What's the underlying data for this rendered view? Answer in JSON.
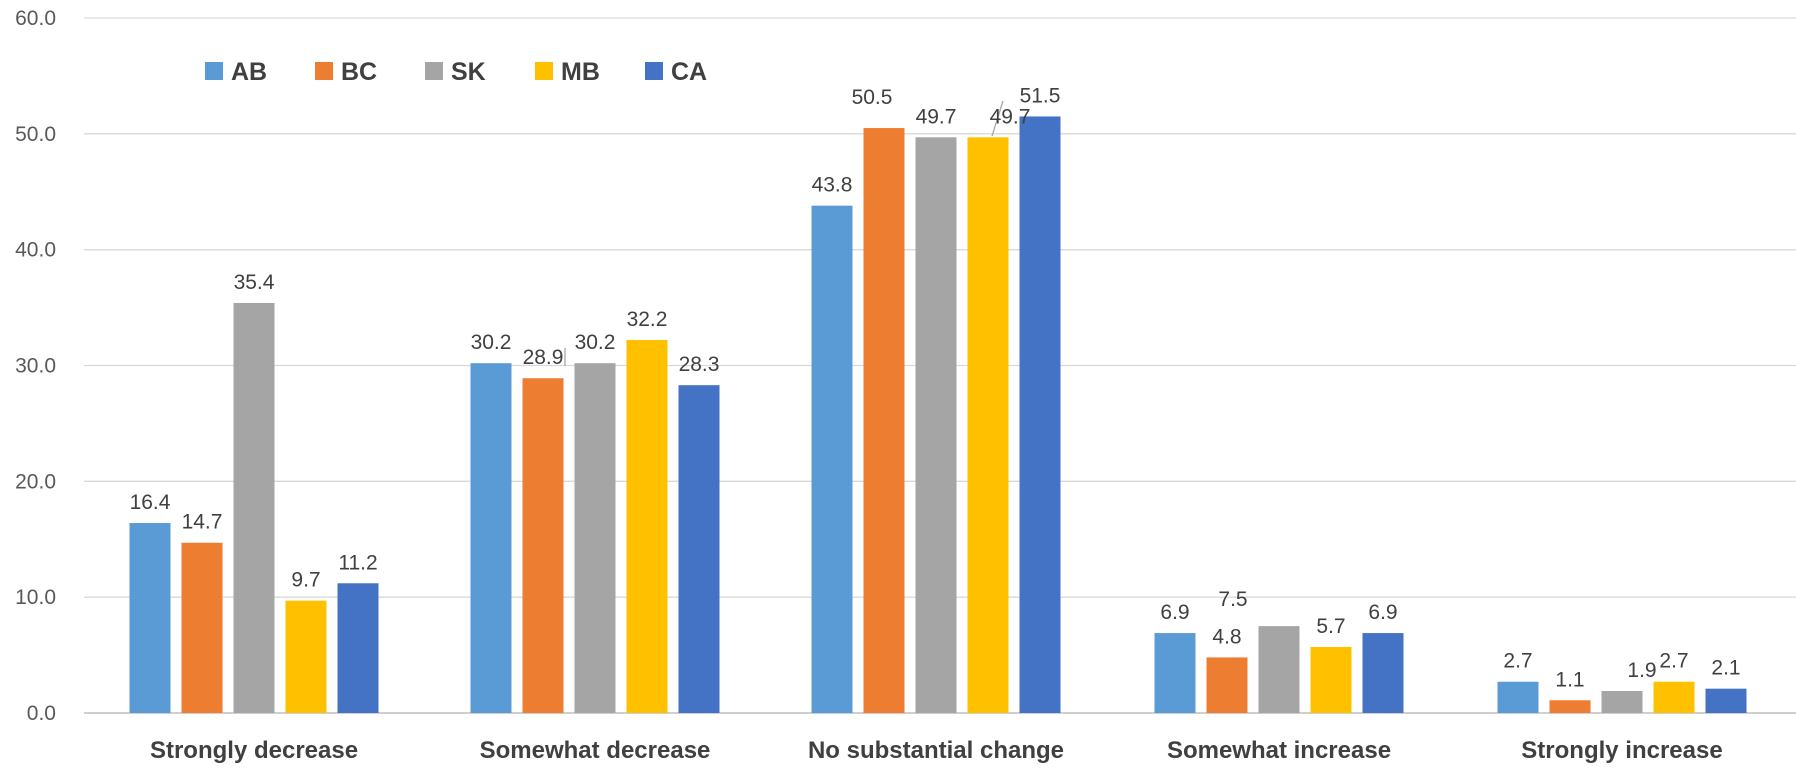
{
  "chart_data": {
    "type": "bar",
    "title": "",
    "xlabel": "",
    "ylabel": "",
    "ylim": [
      0,
      60
    ],
    "yticks": [
      "0.0",
      "10.0",
      "20.0",
      "30.0",
      "40.0",
      "50.0",
      "60.0"
    ],
    "grid": true,
    "legend_position": "top-left",
    "categories": [
      "Strongly decrease",
      "Somewhat decrease",
      "No substantial change",
      "Somewhat increase",
      "Strongly increase"
    ],
    "series": [
      {
        "name": "AB",
        "color": "#5b9bd5",
        "values": [
          16.4,
          30.2,
          43.8,
          6.9,
          2.7
        ],
        "labels": [
          "16.4",
          "30.2",
          "43.8",
          "6.9",
          "2.7"
        ]
      },
      {
        "name": "BC",
        "color": "#ed7d31",
        "values": [
          14.7,
          28.9,
          50.5,
          4.8,
          1.1
        ],
        "labels": [
          "14.7",
          "28.9",
          "50.5",
          "4.8",
          "1.1"
        ]
      },
      {
        "name": "SK",
        "color": "#a5a5a5",
        "values": [
          35.4,
          30.2,
          49.7,
          7.5,
          1.9
        ],
        "labels": [
          "35.4",
          "30.2",
          "49.7",
          "7.5",
          "1.9"
        ]
      },
      {
        "name": "MB",
        "color": "#ffc000",
        "values": [
          9.7,
          32.2,
          49.7,
          5.7,
          2.7
        ],
        "labels": [
          "9.7",
          "32.2",
          "49.7",
          "5.7",
          "2.7"
        ]
      },
      {
        "name": "CA",
        "color": "#4472c4",
        "values": [
          11.2,
          28.3,
          51.5,
          6.9,
          2.1
        ],
        "labels": [
          "11.2",
          "28.3",
          "51.5",
          "6.9",
          "2.1"
        ]
      }
    ]
  }
}
